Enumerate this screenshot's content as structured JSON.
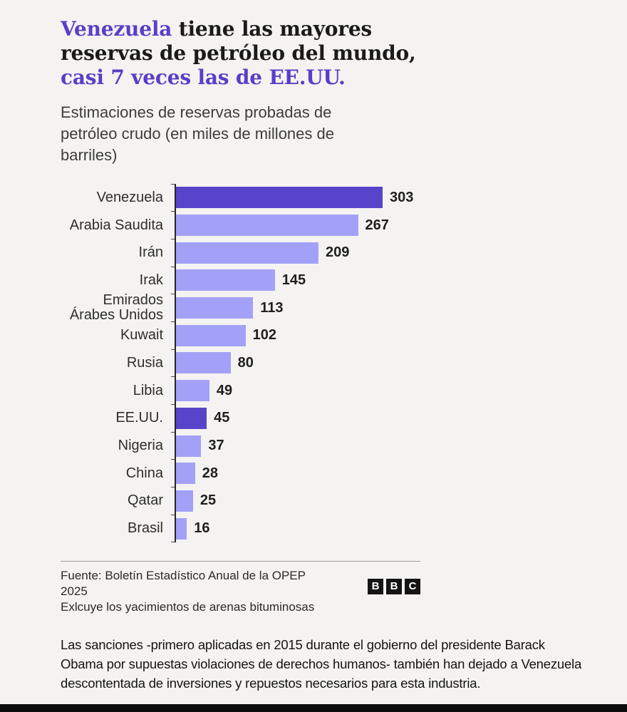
{
  "title": {
    "line1_accent": "Venezuela",
    "line1_rest": " tiene las mayores",
    "line2": "reservas de petróleo del mundo,",
    "line3_accent": "casi 7 veces las de EE.UU."
  },
  "subtitle": "Estimaciones de reservas probadas de petróleo crudo (en miles de millones de barriles)",
  "chart_data": {
    "type": "bar",
    "orientation": "horizontal",
    "title": "",
    "xlabel": "",
    "ylabel": "",
    "units": "miles de millones de barriles",
    "categories": [
      "Venezuela",
      "Arabia Saudita",
      "Irán",
      "Irak",
      "Emirados Árabes Unidos",
      "Kuwait",
      "Rusia",
      "Libia",
      "EE.UU.",
      "Nigeria",
      "China",
      "Qatar",
      "Brasil"
    ],
    "values": [
      303,
      267,
      209,
      145,
      113,
      102,
      80,
      49,
      45,
      37,
      28,
      25,
      16
    ],
    "highlighted": [
      "Venezuela",
      "EE.UU."
    ],
    "bar_color": "#a3a1f7",
    "highlight_color": "#5843cb",
    "xlim": [
      0,
      303
    ],
    "value_labels": true,
    "grid": false,
    "legend": false
  },
  "footer": {
    "source_line1": "Fuente: Boletín Estadístico Anual de la OPEP 2025",
    "source_line2": "Exlcuye los yacimientos de arenas bituminosas",
    "logo_letters": [
      "B",
      "B",
      "C"
    ]
  },
  "caption": "Las sanciones -primero aplicadas en 2015 durante el gobierno del presidente Barack Obama por supuestas violaciones de derechos humanos- también han dejado a Venezuela descontentada de inversiones y repuestos necesarios para esta industria.",
  "colors": {
    "accent": "#5a3ec8",
    "bar": "#a3a1f7",
    "bar_highlight": "#5843cb",
    "background": "#f4f3f1"
  }
}
